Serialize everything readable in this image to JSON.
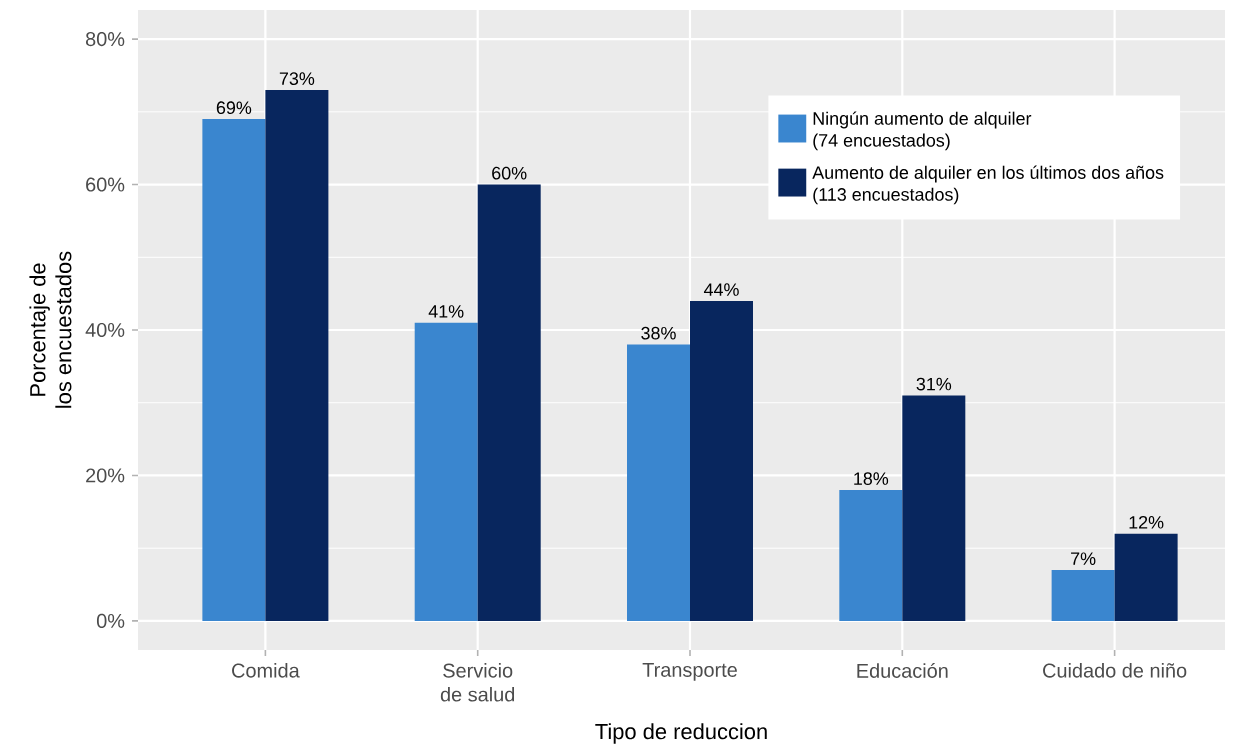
{
  "chart_data": {
    "type": "bar",
    "xlabel": "Tipo de reduccion",
    "ylabel": "Porcentaje de\nlos encuestados",
    "categories": [
      "Comida",
      "Servicio\nde salud",
      "Transporte",
      "Educación",
      "Cuidado de niño"
    ],
    "series": [
      {
        "name": "Ningún aumento de alquiler\n(74 encuestados)",
        "color": "#3a86cf",
        "values": [
          69,
          41,
          38,
          18,
          7
        ],
        "value_labels": [
          "69%",
          "41%",
          "38%",
          "18%",
          "7%"
        ]
      },
      {
        "name": "Aumento de alquiler en los últimos dos años\n(113 encuestados)",
        "color": "#08265e",
        "values": [
          73,
          60,
          44,
          31,
          12
        ],
        "value_labels": [
          "73%",
          "60%",
          "44%",
          "31%",
          "12%"
        ]
      }
    ],
    "ylim": [
      -4,
      84
    ],
    "yticks": [
      {
        "value": 0,
        "label": "0%"
      },
      {
        "value": 20,
        "label": "20%"
      },
      {
        "value": 40,
        "label": "40%"
      },
      {
        "value": 60,
        "label": "60%"
      },
      {
        "value": 80,
        "label": "80%"
      }
    ],
    "grid": true,
    "legend": "top right"
  }
}
